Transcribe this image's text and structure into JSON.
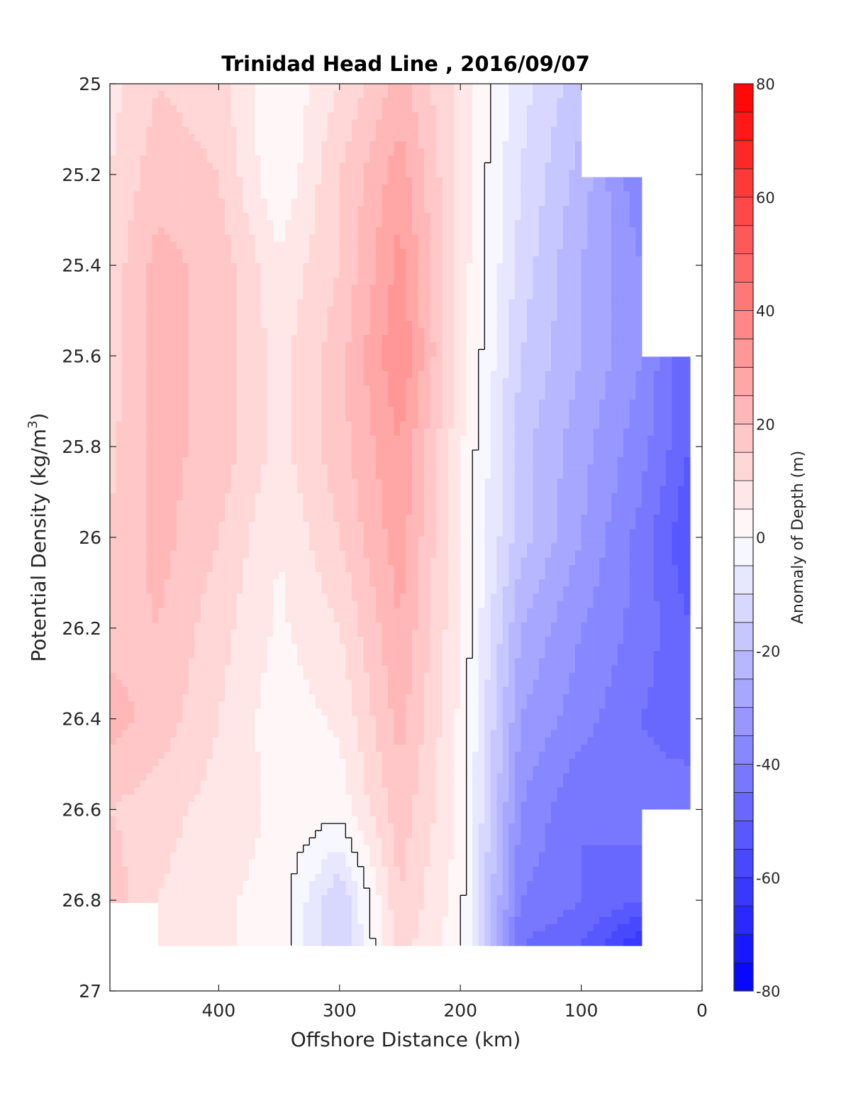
{
  "chart_data": {
    "type": "heatmap",
    "subtype": "filled-contour",
    "title": "Trinidad Head Line , 2016/09/07",
    "xlabel": "Offshore Distance (km)",
    "ylabel": "Potential Density (kg/m^3)",
    "ylabel_parts": {
      "main": "Potential Density (kg/m",
      "sup": "3",
      "end": ")"
    },
    "x_direction": "reversed",
    "y_direction": "reversed",
    "xlim": [
      490,
      0
    ],
    "ylim": [
      25,
      27
    ],
    "xticks": [
      400,
      300,
      200,
      100,
      0
    ],
    "xtick_labels": [
      "400",
      "300",
      "200",
      "100",
      "0"
    ],
    "yticks": [
      25,
      25.2,
      25.4,
      25.6,
      25.8,
      26,
      26.2,
      26.4,
      26.6,
      26.8,
      27
    ],
    "ytick_labels": [
      "25",
      "25.2",
      "25.4",
      "25.6",
      "25.8",
      "26",
      "26.2",
      "26.4",
      "26.6",
      "26.8",
      "27"
    ],
    "grid": false,
    "colorbar": {
      "label": "Anomaly of Depth (m)",
      "limits": [
        -80,
        80
      ],
      "step": 5,
      "ticks": [
        80,
        60,
        40,
        20,
        0,
        -20,
        -40,
        -60,
        -80
      ],
      "tick_labels": [
        "80",
        "60",
        "40",
        "20",
        "0",
        "-20",
        "-40",
        "-60",
        "-80"
      ],
      "colormap": "blue-white-red",
      "negative_color": "#0000ff",
      "positive_color": "#ff0000",
      "neutral_color": "#ffffff"
    },
    "zero_contour_color": "#000000",
    "grid_x": [
      490,
      450,
      400,
      350,
      300,
      250,
      200,
      150,
      100,
      50,
      10
    ],
    "grid_y": [
      25,
      25.2,
      25.4,
      25.6,
      25.8,
      26,
      26.2,
      26.4,
      26.6,
      26.8,
      26.9
    ],
    "values": [
      [
        8,
        15,
        12,
        0,
        10,
        22,
        8,
        -8,
        -18,
        null,
        null
      ],
      [
        10,
        18,
        15,
        0,
        15,
        28,
        8,
        -10,
        -22,
        -40,
        null
      ],
      [
        12,
        22,
        18,
        6,
        15,
        32,
        8,
        -12,
        -25,
        -35,
        null
      ],
      [
        12,
        22,
        18,
        8,
        18,
        35,
        8,
        -15,
        -25,
        -35,
        -50
      ],
      [
        14,
        22,
        18,
        8,
        18,
        30,
        6,
        -18,
        -28,
        -38,
        -50
      ],
      [
        15,
        22,
        15,
        5,
        15,
        28,
        5,
        -18,
        -30,
        -42,
        -55
      ],
      [
        18,
        20,
        12,
        4,
        10,
        25,
        5,
        -25,
        -35,
        -42,
        -50
      ],
      [
        22,
        18,
        10,
        2,
        6,
        22,
        4,
        -30,
        -38,
        -45,
        -50
      ],
      [
        15,
        12,
        8,
        4,
        2,
        18,
        4,
        -35,
        -45,
        -42,
        -40
      ],
      [
        18,
        10,
        6,
        3,
        -15,
        15,
        2,
        -40,
        -45,
        -50,
        null
      ],
      [
        null,
        8,
        6,
        3,
        -15,
        12,
        2,
        -45,
        -50,
        -65,
        null
      ]
    ]
  }
}
